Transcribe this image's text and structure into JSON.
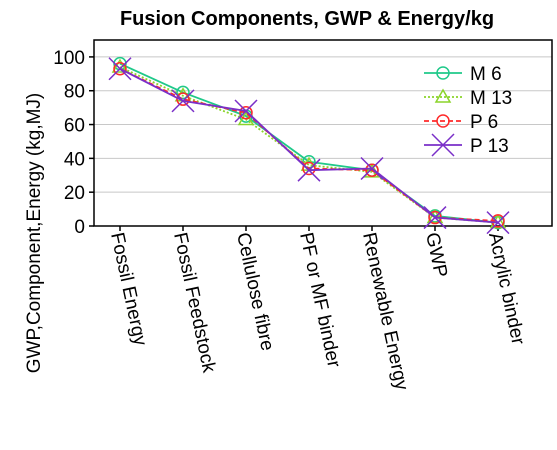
{
  "chart_data": {
    "type": "line",
    "title": "Fusion Components, GWP & Energy/kg",
    "ylabel": "GWP,Component,Energy  (kg,MJ)",
    "xlabel": "",
    "ylim": [
      0,
      110
    ],
    "yticks": [
      0,
      20,
      40,
      60,
      80,
      100
    ],
    "grid": true,
    "legend_position": "top-right",
    "categories": [
      "Fossil Energy",
      "Fossil Feedstock",
      "Cellulose fibre",
      "PF or MF binder",
      "Renewable Energy",
      "GWP",
      "Acrylic binder"
    ],
    "series": [
      {
        "name": "M 6",
        "color": "#1fc98a",
        "marker": "circle",
        "dash": "solid",
        "values": [
          96,
          79,
          65,
          38,
          33,
          6,
          2
        ]
      },
      {
        "name": "M 13",
        "color": "#8bd42a",
        "marker": "triangle",
        "dash": "dotted",
        "values": [
          94,
          77,
          63,
          36,
          32,
          5,
          2
        ]
      },
      {
        "name": "P 6",
        "color": "#ff2a2a",
        "marker": "circle",
        "dash": "dashed",
        "values": [
          93,
          75,
          67,
          34,
          33,
          5,
          3
        ]
      },
      {
        "name": "P 13",
        "color": "#7a2fc8",
        "marker": "cross",
        "dash": "solid",
        "values": [
          93,
          74,
          68,
          33,
          34,
          5,
          2
        ]
      }
    ]
  }
}
